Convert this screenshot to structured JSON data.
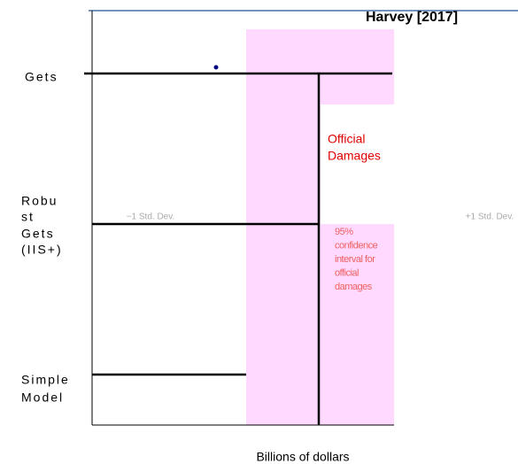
{
  "title": "Harvey [2017]",
  "rows": [
    {
      "label": [
        "Gets"
      ]
    },
    {
      "label": [
        "Robu",
        "st",
        "Gets",
        "(IIS+)"
      ]
    },
    {
      "label": [
        "Simple",
        "Model"
      ]
    }
  ],
  "annotations": {
    "official": [
      "Official",
      "Damages"
    ],
    "interval": [
      "95%",
      "confidence",
      "interval for",
      "official",
      "damages"
    ],
    "minus_sd": "−1 Std. Dev.",
    "plus_sd": "+1 Std. Dev."
  },
  "x_label": "Billions of dollars"
}
